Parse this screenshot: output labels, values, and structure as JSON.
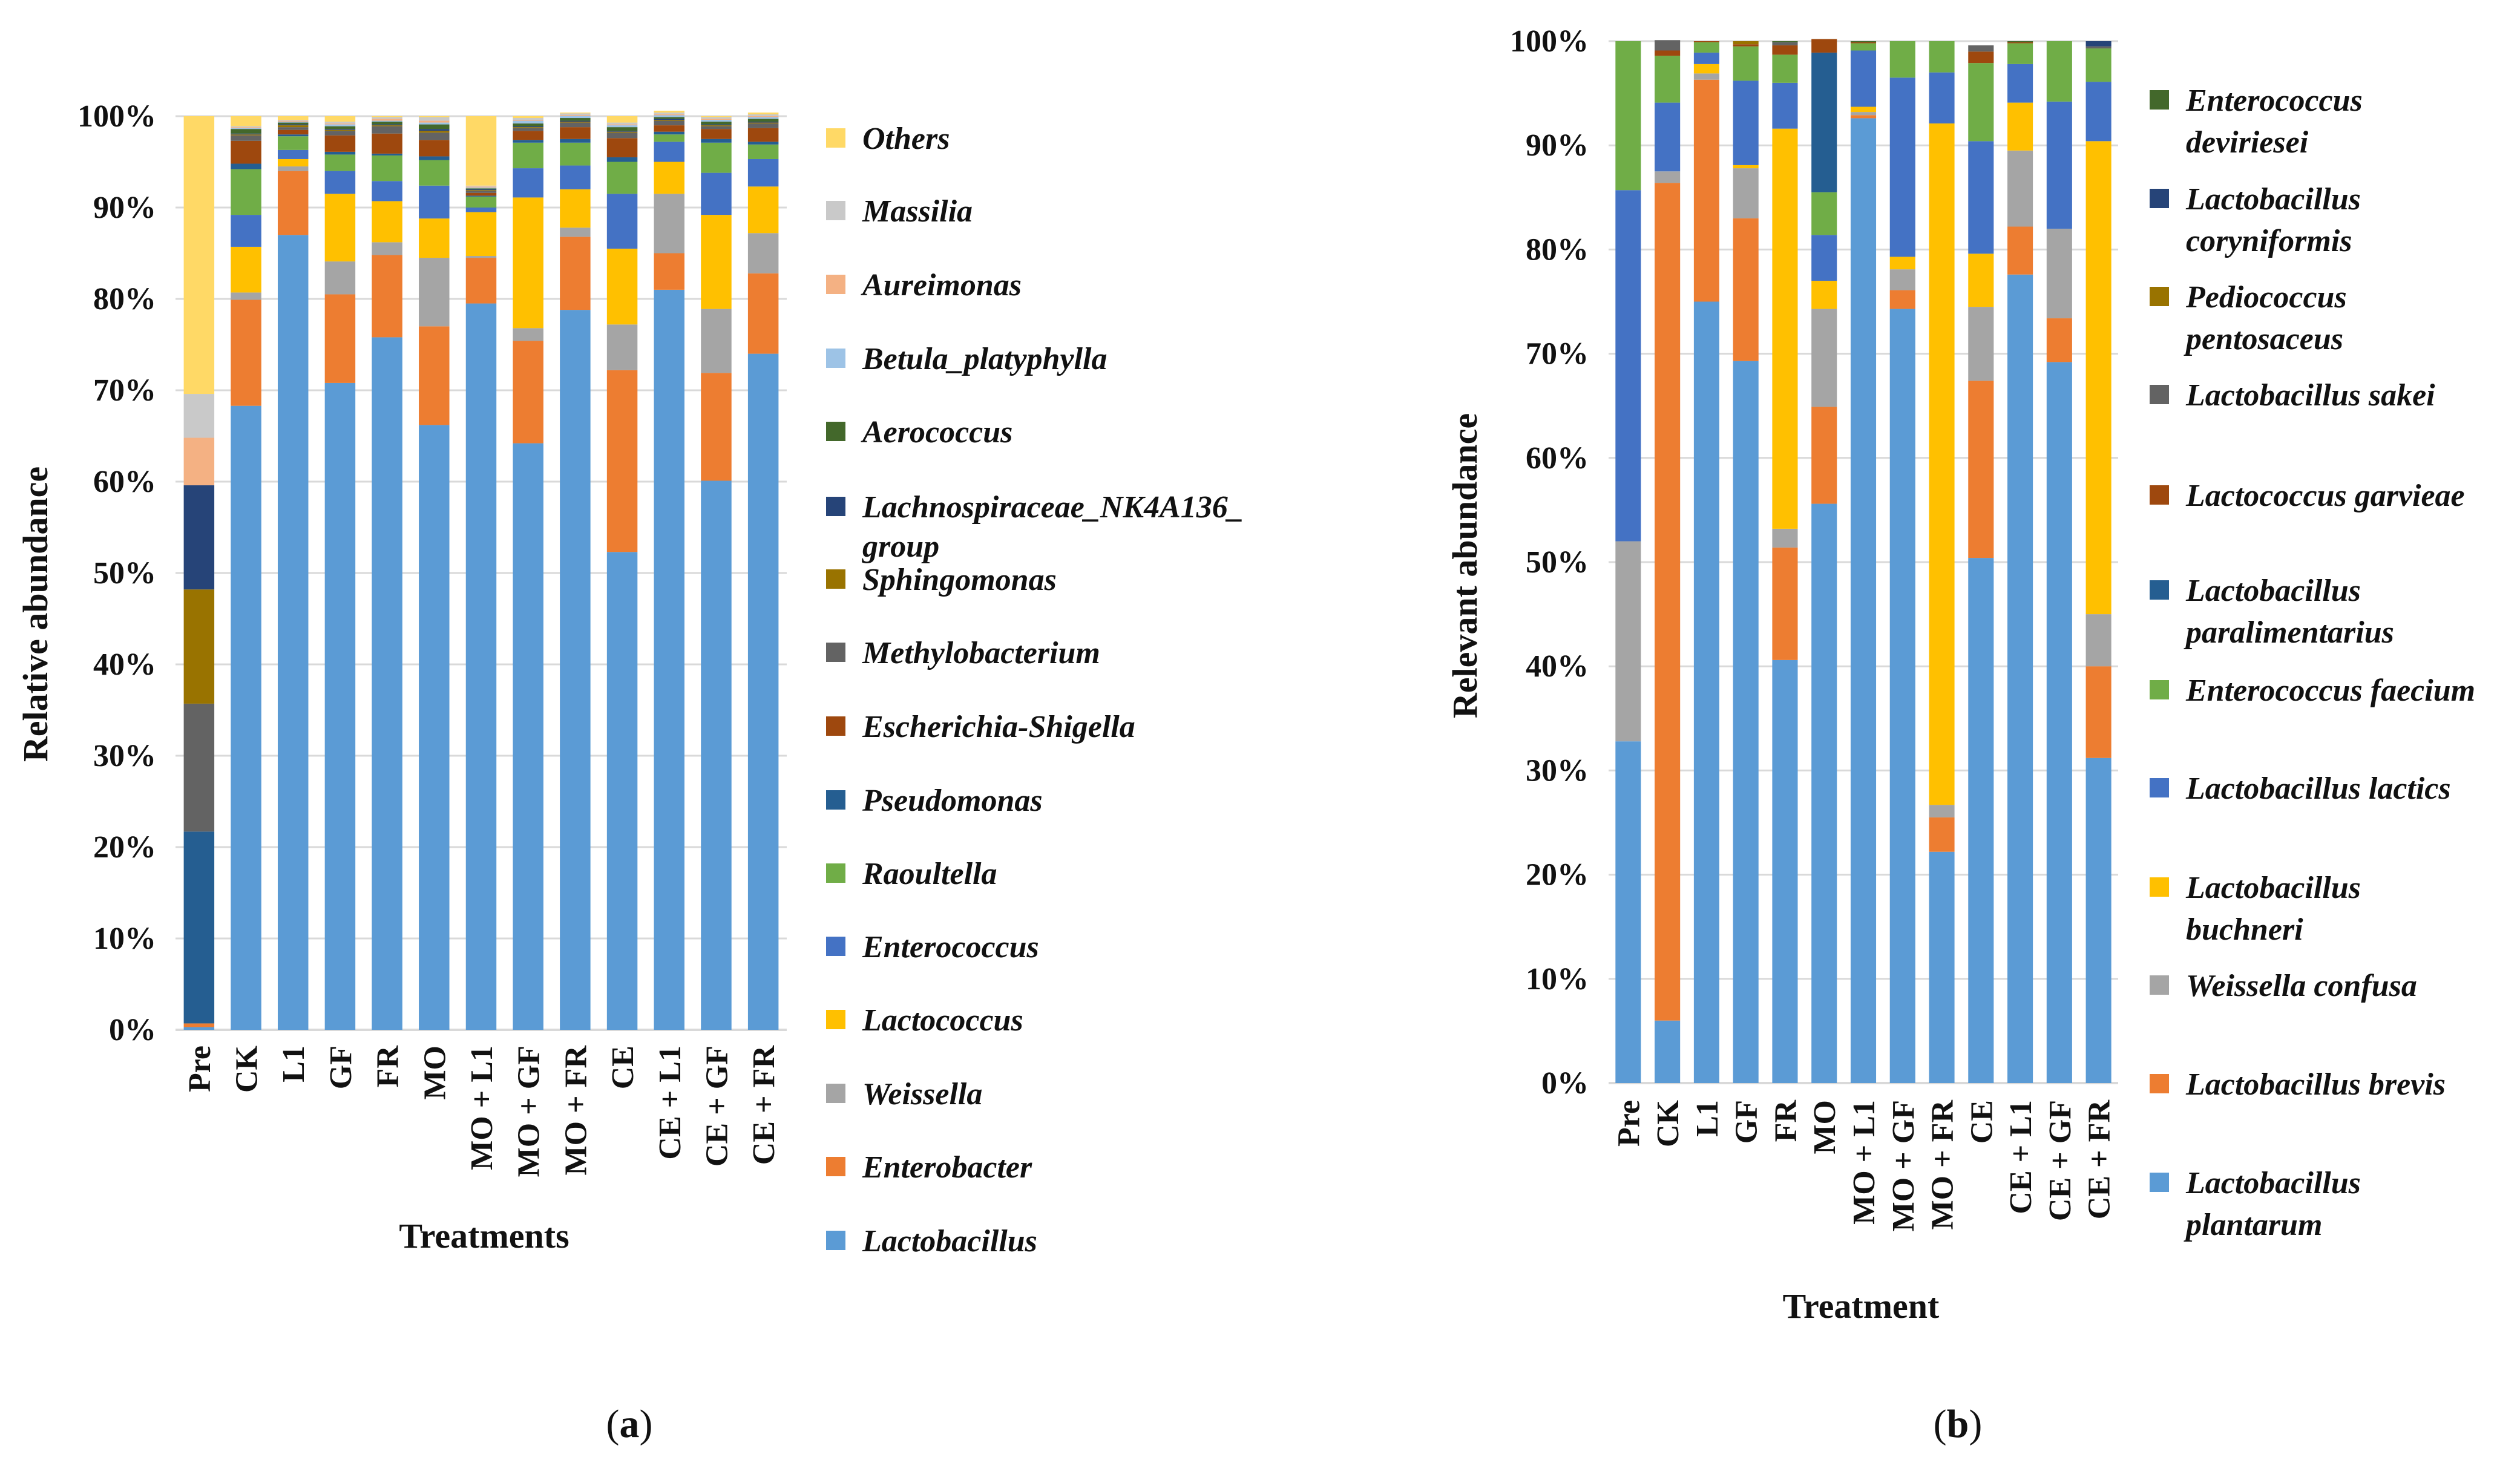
{
  "chart_data": [
    {
      "type": "bar",
      "stacked": true,
      "panel_label_prefix": "(",
      "panel_label_letter": "a",
      "panel_label_suffix": ")",
      "xlabel": "Treatments",
      "ylabel": "Relative abundance",
      "ylim": [
        0,
        100
      ],
      "yticks": [
        "0%",
        "10%",
        "20%",
        "30%",
        "40%",
        "50%",
        "60%",
        "70%",
        "80%",
        "90%",
        "100%"
      ],
      "categories": [
        "Pre",
        "CK",
        "L1",
        "GF",
        "FR",
        "MO",
        "MO + L1",
        "MO + GF",
        "MO + FR",
        "CE",
        "CE + L1",
        "CE + GF",
        "CE + FR"
      ],
      "series": [
        {
          "name": "Lactobacillus",
          "color": "#5B9BD5",
          "values": [
            0.3,
            68.3,
            87.0,
            70.8,
            75.8,
            66.2,
            79.5,
            64.2,
            78.8,
            52.3,
            81.0,
            60.1,
            74.0
          ]
        },
        {
          "name": "Enterobacter",
          "color": "#ED7D31",
          "values": [
            0.4,
            11.6,
            7.0,
            9.7,
            9.0,
            10.8,
            5.0,
            11.2,
            8.0,
            19.9,
            4.0,
            11.8,
            8.8
          ]
        },
        {
          "name": "Weissella",
          "color": "#A5A5A5",
          "values": [
            0,
            0.8,
            0.5,
            3.6,
            1.4,
            7.5,
            0.2,
            1.4,
            1.0,
            5.0,
            6.5,
            7.0,
            4.4
          ]
        },
        {
          "name": "Lactococcus",
          "color": "#FFC000",
          "values": [
            0,
            5.0,
            0.8,
            7.4,
            4.5,
            4.3,
            4.8,
            14.3,
            4.2,
            8.3,
            3.5,
            10.3,
            5.1
          ]
        },
        {
          "name": "Enterococcus",
          "color": "#4472C4",
          "values": [
            0,
            3.5,
            1.0,
            2.5,
            2.2,
            3.6,
            0.5,
            3.2,
            2.6,
            6.0,
            2.2,
            4.6,
            3.0
          ]
        },
        {
          "name": "Raoultella",
          "color": "#70AD47",
          "values": [
            0,
            5.0,
            1.5,
            1.8,
            2.8,
            2.8,
            1.2,
            2.8,
            2.5,
            3.5,
            0.8,
            3.3,
            1.6
          ]
        },
        {
          "name": "Pseudomonas",
          "color": "#255E91",
          "values": [
            21.0,
            0.6,
            0.2,
            0.3,
            0.2,
            0.4,
            0.1,
            0.3,
            0.4,
            0.5,
            0.3,
            0.4,
            0.3
          ]
        },
        {
          "name": "Escherichia-Shigella",
          "color": "#9E480E",
          "values": [
            0,
            2.5,
            0.5,
            1.8,
            2.2,
            1.8,
            0.3,
            1.0,
            1.3,
            2.1,
            0.7,
            1.1,
            1.5
          ]
        },
        {
          "name": "Methylobacterium",
          "color": "#636363",
          "values": [
            14.0,
            0.6,
            0.3,
            0.5,
            0.8,
            0.8,
            0.2,
            0.3,
            0.5,
            0.6,
            0.5,
            0.3,
            0.5
          ]
        },
        {
          "name": "Sphingomonas",
          "color": "#997300",
          "values": [
            12.5,
            0.1,
            0.2,
            0.1,
            0.1,
            0.2,
            0.1,
            0.1,
            0.1,
            0.1,
            0.1,
            0.1,
            0.1
          ]
        },
        {
          "name": "Lachnospiraceae_NK4A136_ group",
          "color": "#264478",
          "values": [
            11.4,
            0.1,
            0.1,
            0.1,
            0.1,
            0.2,
            0.1,
            0.1,
            0.1,
            0.1,
            0.1,
            0.1,
            0.1
          ]
        },
        {
          "name": "Aerococcus",
          "color": "#43682B",
          "values": [
            0,
            0.5,
            0.2,
            0.3,
            0.3,
            0.5,
            0.1,
            0.3,
            0.3,
            0.4,
            0.2,
            0.3,
            0.3
          ]
        },
        {
          "name": "Betula_platyphylla",
          "color": "#9DC3E6",
          "values": [
            0,
            0.1,
            0.1,
            0.2,
            0.1,
            0.2,
            0.1,
            0.3,
            0.2,
            0.2,
            0.2,
            0.2,
            0.2
          ]
        },
        {
          "name": "Aureimonas",
          "color": "#F4B183",
          "values": [
            5.2,
            0.1,
            0.1,
            0.1,
            0.2,
            0.2,
            0.1,
            0.1,
            0.1,
            0.1,
            0.1,
            0.1,
            0.1
          ]
        },
        {
          "name": "Massilia",
          "color": "#C9C9C9",
          "values": [
            4.8,
            0.1,
            0.1,
            0.2,
            0.2,
            0.4,
            0.1,
            0.2,
            0.2,
            0.2,
            0.2,
            0.2,
            0.2
          ]
        },
        {
          "name": "Others",
          "color": "#FFD966",
          "values": [
            30.4,
            1.1,
            0.4,
            0.6,
            0.1,
            0.1,
            7.6,
            0.2,
            0.1,
            0.7,
            0.2,
            0.1,
            0.2
          ]
        }
      ]
    },
    {
      "type": "bar",
      "stacked": true,
      "panel_label_prefix": "(",
      "panel_label_letter": "b",
      "panel_label_suffix": ")",
      "xlabel": "Treatment",
      "ylabel": "Relevant abundance",
      "ylim": [
        0,
        100
      ],
      "yticks": [
        "0%",
        "10%",
        "20%",
        "30%",
        "40%",
        "50%",
        "60%",
        "70%",
        "80%",
        "90%",
        "100%"
      ],
      "categories": [
        "Pre",
        "CK",
        "L1",
        "GF",
        "FR",
        "MO",
        "MO + L1",
        "MO + GF",
        "MO + FR",
        "CE",
        "CE + L1",
        "CE + GF",
        "CE + FR"
      ],
      "series": [
        {
          "name": "Lactobacillus plantarum",
          "color": "#5B9BD5",
          "values": [
            32.8,
            6.0,
            75.0,
            69.3,
            40.6,
            55.6,
            92.6,
            74.3,
            22.2,
            50.4,
            77.6,
            69.2,
            31.2
          ]
        },
        {
          "name": "Lactobacillus brevis",
          "color": "#ED7D31",
          "values": [
            0,
            80.4,
            21.3,
            13.7,
            10.8,
            9.3,
            0.3,
            1.8,
            3.3,
            17.0,
            4.6,
            4.2,
            8.8
          ]
        },
        {
          "name": "Weissella confusa",
          "color": "#A5A5A5",
          "values": [
            19.2,
            1.1,
            0.6,
            4.8,
            1.8,
            9.4,
            0.3,
            2.0,
            1.2,
            7.1,
            7.3,
            8.6,
            5.0
          ]
        },
        {
          "name": "Lactobacillus buchneri",
          "color": "#FFC000",
          "values": [
            0,
            0,
            0.9,
            0.3,
            38.4,
            2.7,
            0.5,
            1.2,
            65.4,
            5.1,
            4.6,
            0,
            45.4
          ]
        },
        {
          "name": "Lactobacillus lactics",
          "color": "#4472C4",
          "values": [
            33.7,
            6.6,
            1.1,
            8.1,
            4.4,
            4.4,
            5.4,
            17.2,
            4.9,
            10.8,
            3.7,
            12.2,
            5.7
          ]
        },
        {
          "name": "Enterococcus faecium",
          "color": "#70AD47",
          "values": [
            14.3,
            4.5,
            1.0,
            3.3,
            2.7,
            4.1,
            0.7,
            3.5,
            3.0,
            7.5,
            2.0,
            5.8,
            3.2
          ]
        },
        {
          "name": "Lactobacillus paralimentarius",
          "color": "#255E91",
          "values": [
            0,
            0,
            0,
            0,
            0,
            13.4,
            0,
            0,
            0,
            0,
            0,
            0,
            0
          ]
        },
        {
          "name": "Lactococcus garvieae",
          "color": "#9E480E",
          "values": [
            0,
            0.5,
            0.1,
            0.2,
            0.9,
            1.3,
            0.1,
            0,
            0,
            1.1,
            0.1,
            0,
            0
          ]
        },
        {
          "name": "Lactobacillus sakei",
          "color": "#636363",
          "values": [
            0,
            1.0,
            0,
            0,
            0.3,
            0,
            0,
            0,
            0,
            0.6,
            0,
            0,
            0.2
          ]
        },
        {
          "name": "Pediococcus pentosaceus",
          "color": "#997300",
          "values": [
            0,
            0,
            0,
            0.3,
            0,
            0,
            0,
            0,
            0,
            0,
            0,
            0,
            0
          ]
        },
        {
          "name": "Lactobacillus coryniformis",
          "color": "#264478",
          "values": [
            0,
            0,
            0,
            0,
            0,
            0,
            0,
            0,
            0,
            0,
            0,
            0,
            0.5
          ]
        },
        {
          "name": "Enterococcus deviriesei",
          "color": "#43682B",
          "values": [
            0,
            0,
            0,
            0,
            0.1,
            0,
            0.1,
            0,
            0,
            0,
            0.1,
            0,
            0
          ]
        }
      ]
    }
  ]
}
